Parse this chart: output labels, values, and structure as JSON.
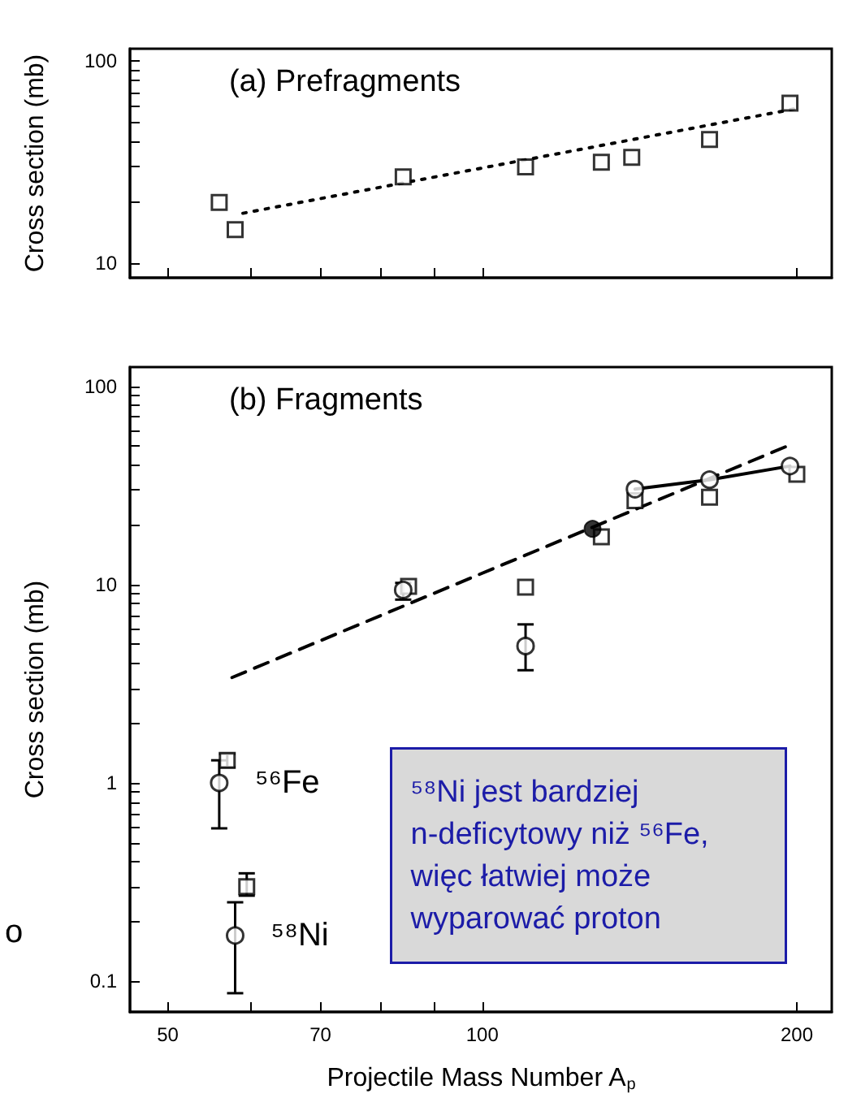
{
  "chart_data": [
    {
      "type": "scatter",
      "title": "(a) Prefragments",
      "ylabel": "Cross section (mb)",
      "log": "xy",
      "grid": false,
      "tick_labels": "y",
      "xlim": [
        46,
        216
      ],
      "xticks": [
        50,
        {
          "value": 60,
          "label": null
        },
        70,
        {
          "value": 80,
          "label": null
        },
        {
          "value": 90,
          "label": null
        },
        100,
        200
      ],
      "ylim": [
        8.5,
        115
      ],
      "yticks": [
        10,
        {
          "value": 20,
          "label": null
        },
        {
          "value": 30,
          "label": null
        },
        {
          "value": 40,
          "label": null
        },
        {
          "value": 50,
          "label": null
        },
        {
          "value": 60,
          "label": null
        },
        {
          "value": 70,
          "label": null
        },
        {
          "value": 80,
          "label": null
        },
        {
          "value": 90,
          "label": null
        },
        100
      ],
      "series": [
        {
          "marker": "square",
          "color": "#000000",
          "x": [
            56,
            58,
            84,
            110,
            130,
            139,
            165,
            197
          ],
          "values": [
            20,
            14.7,
            26.8,
            30,
            31.6,
            33.4,
            41,
            62
          ]
        },
        {
          "type": "line",
          "marker": "none",
          "line_style": "dotted",
          "color": "#000000",
          "x": [
            59,
            199
          ],
          "values": [
            17.7,
            58
          ]
        }
      ]
    },
    {
      "type": "scatter",
      "title": "(b) Fragments",
      "ylabel": "Cross section (mb)",
      "xlabel": "Projectile Mass Number A$_{p}$",
      "log": "xy",
      "grid": false,
      "xlim": [
        46,
        216
      ],
      "xticks": [
        50,
        {
          "value": 60,
          "label": null
        },
        70,
        {
          "value": 80,
          "label": null
        },
        {
          "value": 90,
          "label": null
        },
        100,
        200
      ],
      "ylim": [
        0.07,
        125
      ],
      "yticks": [
        0.1,
        {
          "value": 0.2,
          "label": null
        },
        {
          "value": 0.3,
          "label": null
        },
        {
          "value": 0.4,
          "label": null
        },
        {
          "value": 0.5,
          "label": null
        },
        {
          "value": 0.6,
          "label": null
        },
        {
          "value": 0.7,
          "label": null
        },
        {
          "value": 0.8,
          "label": null
        },
        {
          "value": 0.9,
          "label": null
        },
        1,
        {
          "value": 2,
          "label": null
        },
        {
          "value": 3,
          "label": null
        },
        {
          "value": 4,
          "label": null
        },
        {
          "value": 5,
          "label": null
        },
        {
          "value": 6,
          "label": null
        },
        {
          "value": 7,
          "label": null
        },
        {
          "value": 8,
          "label": null
        },
        {
          "value": 9,
          "label": null
        },
        10,
        {
          "value": 20,
          "label": null
        },
        {
          "value": 30,
          "label": null
        },
        {
          "value": 40,
          "label": null
        },
        {
          "value": 50,
          "label": null
        },
        {
          "value": 60,
          "label": null
        },
        {
          "value": 70,
          "label": null
        },
        {
          "value": 80,
          "label": null
        },
        {
          "value": 90,
          "label": null
        },
        100
      ],
      "series": [
        {
          "type": "line",
          "marker": "none",
          "line_style": "dashed",
          "color": "#000000",
          "x": [
            57.6,
            195
          ],
          "values": [
            3.4,
            49.5
          ]
        },
        {
          "type": "line",
          "marker": "none",
          "line_style": "solid",
          "color": "#000000",
          "x": [
            140,
            165,
            197
          ],
          "values": [
            30.3,
            33.8,
            39.6
          ]
        },
        {
          "marker": "square",
          "color": "#000000",
          "x": [
            57,
            59.5,
            85,
            110,
            130,
            140,
            165,
            200
          ],
          "values": [
            1.3,
            0.3,
            9.8,
            9.7,
            17.4,
            26.5,
            27.6,
            36
          ],
          "errors": [
            [
              1.2,
              1.4
            ],
            [
              0.27,
              0.35
            ],
            null,
            null,
            null,
            null,
            null,
            null
          ]
        },
        {
          "marker": "circle",
          "color": "#000000",
          "x": [
            56,
            58,
            84,
            110,
            140,
            165,
            197
          ],
          "values": [
            1.0,
            0.17,
            9.4,
            4.9,
            30.3,
            33.8,
            39.6
          ],
          "errors": [
            [
              0.59,
              1.3
            ],
            [
              0.087,
              0.25
            ],
            [
              8.4,
              10.2
            ],
            [
              3.7,
              6.3
            ],
            null,
            null,
            null
          ]
        },
        {
          "marker": "circle",
          "color": "#000000",
          "colors": [
            "#000000"
          ],
          "x": [
            127.5
          ],
          "values": [
            19.1
          ]
        }
      ],
      "annotations": [
        "⁵⁸Ni jest bardziej n-deficytowy niż ⁵⁶Fe, więc łatwiej może wyparować proton",
        "o",
        {
          "text": "⁵⁶Fe",
          "x": 56,
          "y": 1.0
        },
        {
          "text": "⁵⁸Ni",
          "x": 58,
          "y": 0.17
        }
      ]
    }
  ]
}
